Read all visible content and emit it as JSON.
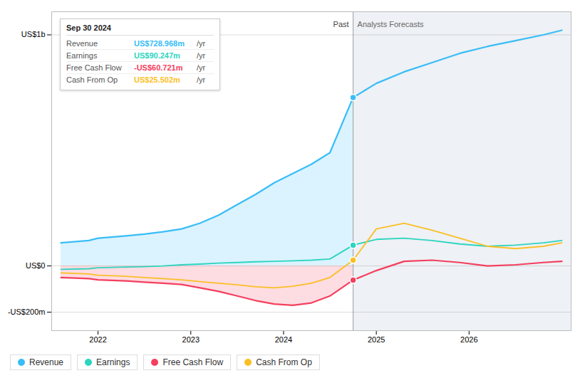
{
  "chart_data": {
    "type": "line",
    "x": [
      2021.6,
      2021.9,
      2022.0,
      2022.3,
      2022.5,
      2022.7,
      2022.9,
      2023.1,
      2023.3,
      2023.5,
      2023.7,
      2023.9,
      2024.1,
      2024.3,
      2024.5,
      2024.75,
      2025.0,
      2025.3,
      2025.6,
      2025.9,
      2026.2,
      2026.5,
      2026.8,
      2027.0
    ],
    "series": [
      {
        "name": "Revenue",
        "color": "#38bdf8",
        "type": "area",
        "values": [
          100,
          110,
          120,
          130,
          138,
          148,
          160,
          185,
          220,
          265,
          310,
          360,
          400,
          440,
          490,
          729,
          790,
          840,
          880,
          920,
          950,
          975,
          1000,
          1020
        ]
      },
      {
        "name": "Earnings",
        "color": "#2dd4bf",
        "type": "line",
        "values": [
          -15,
          -12,
          -8,
          -5,
          -3,
          0,
          5,
          8,
          12,
          15,
          18,
          20,
          22,
          25,
          30,
          90,
          115,
          120,
          110,
          95,
          85,
          90,
          100,
          110
        ]
      },
      {
        "name": "Free Cash Flow",
        "color": "#f43f5e",
        "type": "area",
        "values": [
          -50,
          -55,
          -60,
          -65,
          -70,
          -75,
          -80,
          -95,
          -110,
          -130,
          -150,
          -165,
          -170,
          -160,
          -130,
          -61,
          -20,
          20,
          25,
          15,
          0,
          5,
          15,
          20
        ]
      },
      {
        "name": "Cash From Op",
        "color": "#fbbf24",
        "type": "line",
        "values": [
          -30,
          -35,
          -40,
          -45,
          -50,
          -55,
          -60,
          -68,
          -75,
          -82,
          -90,
          -95,
          -88,
          -75,
          -50,
          25,
          160,
          185,
          155,
          120,
          85,
          75,
          85,
          100
        ]
      }
    ],
    "xlim": [
      2021.5,
      2027.1
    ],
    "xticks": [
      2022,
      2023,
      2024,
      2025,
      2026
    ],
    "ylim": [
      -280,
      1100
    ],
    "yticks": [
      {
        "value": 1000,
        "label": "US$1b"
      },
      {
        "value": 0,
        "label": "US$0"
      },
      {
        "value": -200,
        "label": "-US$200m"
      }
    ],
    "grid": true,
    "legend": "bottom",
    "divider": {
      "x": 2024.75,
      "before": "Past",
      "after": "Analysts Forecasts"
    },
    "tooltip": {
      "title": "Sep 30 2024",
      "rows": [
        {
          "label": "Revenue",
          "value": "US$728.968m",
          "unit": " /yr",
          "color": "#38bdf8"
        },
        {
          "label": "Earnings",
          "value": "US$90.247m",
          "unit": " /yr",
          "color": "#2dd4bf"
        },
        {
          "label": "Free Cash Flow",
          "value": "-US$60.721m",
          "unit": " /yr",
          "color": "#f43f5e"
        },
        {
          "label": "Cash From Op",
          "value": "US$25.502m",
          "unit": " /yr",
          "color": "#fbbf24"
        }
      ]
    }
  }
}
